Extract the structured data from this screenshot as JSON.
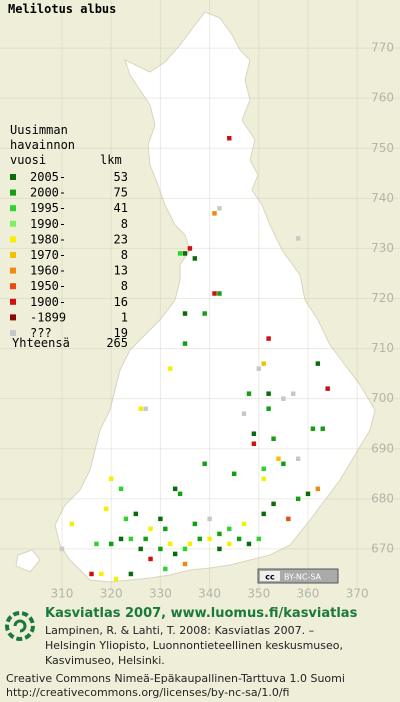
{
  "map": {
    "title": "Melilotus albus",
    "xlim": [
      297.4,
      378.7
    ],
    "ylim": [
      661.8,
      779.6
    ],
    "xticks": [
      310,
      320,
      330,
      340,
      350,
      360,
      370
    ],
    "yticks": [
      670,
      680,
      690,
      700,
      710,
      720,
      730,
      740,
      750,
      760,
      770
    ],
    "grid": true,
    "legend": {
      "heading": [
        "Uusimman",
        "havainnon",
        "vuosi"
      ],
      "count_heading": "lkm",
      "rows": [
        {
          "label": "2005-",
          "count": 53,
          "color": "#0b6a0b"
        },
        {
          "label": "2000-",
          "count": 75,
          "color": "#12a012"
        },
        {
          "label": "1995-",
          "count": 41,
          "color": "#2ed42e"
        },
        {
          "label": "1990-",
          "count": 8,
          "color": "#80f060"
        },
        {
          "label": "1980-",
          "count": 23,
          "color": "#f5f000"
        },
        {
          "label": "1970-",
          "count": 8,
          "color": "#f2c200"
        },
        {
          "label": "1960-",
          "count": 13,
          "color": "#f08a10"
        },
        {
          "label": "1950-",
          "count": 8,
          "color": "#e84a10"
        },
        {
          "label": "1900-",
          "count": 16,
          "color": "#d01010"
        },
        {
          "label": "-1899",
          "count": 1,
          "color": "#8c0808"
        },
        {
          "label": "???",
          "count": 19,
          "color": "#c8c8c8"
        }
      ],
      "total_label": "Yhteensä",
      "total": 265
    },
    "points": [
      [
        344,
        752,
        8
      ],
      [
        341,
        737,
        6
      ],
      [
        342,
        738,
        10
      ],
      [
        358,
        732,
        10
      ],
      [
        335,
        729,
        0
      ],
      [
        336,
        730,
        8
      ],
      [
        337,
        728,
        0
      ],
      [
        334,
        729,
        2
      ],
      [
        341,
        721,
        8
      ],
      [
        342,
        721,
        1
      ],
      [
        339,
        717,
        1
      ],
      [
        335,
        717,
        0
      ],
      [
        352,
        712,
        8
      ],
      [
        351,
        707,
        5
      ],
      [
        362,
        707,
        0
      ],
      [
        364,
        702,
        8
      ],
      [
        332,
        706,
        4
      ],
      [
        335,
        711,
        1
      ],
      [
        350,
        706,
        10
      ],
      [
        348,
        701,
        1
      ],
      [
        352,
        701,
        0
      ],
      [
        352,
        698,
        1
      ],
      [
        355,
        700,
        10
      ],
      [
        357,
        701,
        10
      ],
      [
        327,
        698,
        10
      ],
      [
        326,
        698,
        4
      ],
      [
        349,
        693,
        0
      ],
      [
        353,
        692,
        1
      ],
      [
        361,
        694,
        1
      ],
      [
        363,
        694,
        1
      ],
      [
        347,
        697,
        10
      ],
      [
        349,
        691,
        8
      ],
      [
        354,
        688,
        5
      ],
      [
        355,
        687,
        1
      ],
      [
        358,
        688,
        10
      ],
      [
        351,
        686,
        2
      ],
      [
        351,
        684,
        4
      ],
      [
        339,
        687,
        1
      ],
      [
        345,
        685,
        1
      ],
      [
        362,
        682,
        6
      ],
      [
        360,
        681,
        0
      ],
      [
        358,
        680,
        1
      ],
      [
        353,
        679,
        0
      ],
      [
        351,
        677,
        0
      ],
      [
        356,
        676,
        7
      ],
      [
        340,
        676,
        10
      ],
      [
        337,
        675,
        1
      ],
      [
        334,
        681,
        1
      ],
      [
        333,
        682,
        0
      ],
      [
        322,
        682,
        2
      ],
      [
        320,
        684,
        4
      ],
      [
        319,
        678,
        4
      ],
      [
        325,
        677,
        0
      ],
      [
        323,
        676,
        2
      ],
      [
        322,
        672,
        0
      ],
      [
        320,
        671,
        1
      ],
      [
        324,
        672,
        2
      ],
      [
        326,
        670,
        0
      ],
      [
        327,
        672,
        1
      ],
      [
        328,
        668,
        8
      ],
      [
        330,
        670,
        1
      ],
      [
        332,
        671,
        4
      ],
      [
        333,
        669,
        0
      ],
      [
        335,
        670,
        2
      ],
      [
        336,
        671,
        4
      ],
      [
        338,
        672,
        1
      ],
      [
        340,
        672,
        4
      ],
      [
        342,
        670,
        0
      ],
      [
        344,
        671,
        4
      ],
      [
        346,
        672,
        1
      ],
      [
        348,
        671,
        0
      ],
      [
        350,
        672,
        2
      ],
      [
        347,
        675,
        4
      ],
      [
        344,
        674,
        2
      ],
      [
        342,
        673,
        1
      ],
      [
        330,
        676,
        0
      ],
      [
        331,
        674,
        1
      ],
      [
        328,
        674,
        4
      ],
      [
        317,
        671,
        2
      ],
      [
        316,
        665,
        8
      ],
      [
        310,
        670,
        10
      ],
      [
        312,
        675,
        4
      ],
      [
        318,
        665,
        4
      ],
      [
        324,
        665,
        0
      ],
      [
        321,
        664,
        4
      ],
      [
        331,
        666,
        2
      ],
      [
        335,
        667,
        6
      ]
    ],
    "badge": {
      "icon": "cc",
      "label": "BY-NC-SA"
    }
  },
  "footer": {
    "site": "Kasviatlas 2007, www.luomus.fi/kasviatlas",
    "citation": [
      "Lampinen, R. & Lahti, T. 2008: Kasviatlas 2007. –",
      "Helsingin Yliopisto, Luonnontieteellinen keskusmuseo,",
      "Kasvimuseo, Helsinki."
    ],
    "license": [
      "Creative Commons Nimeä-Epäkaupallinen-Tarttuva 1.0 Suomi",
      "http://creativecommons.org/licenses/by-nc-sa/1.0/fi"
    ]
  }
}
